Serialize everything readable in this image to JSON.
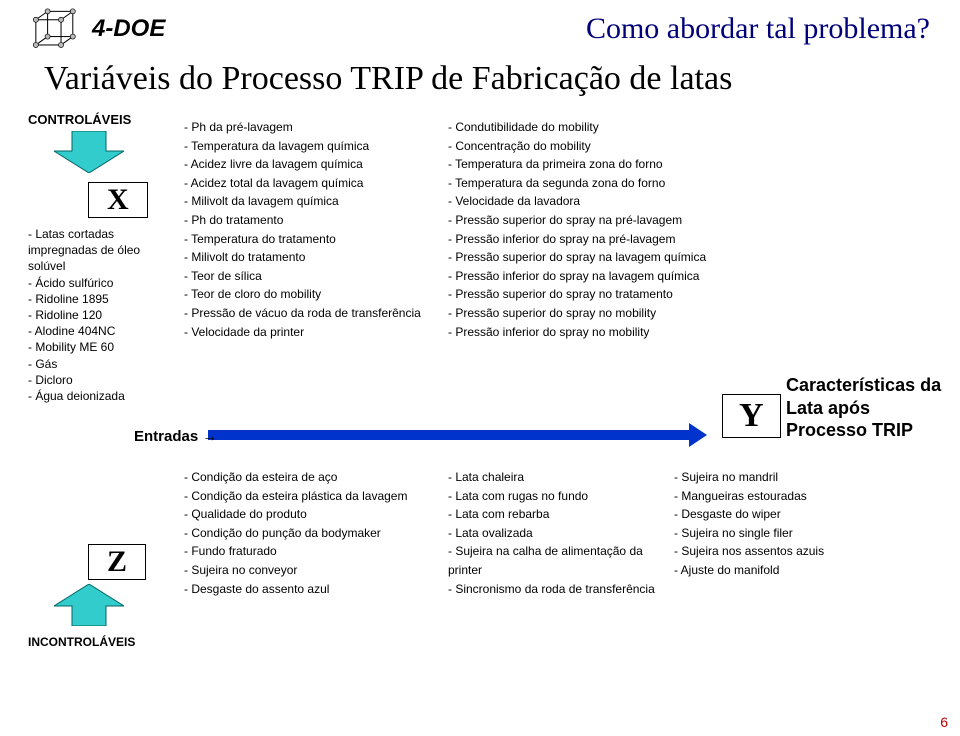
{
  "header": {
    "section": "4-DOE",
    "question": "Como abordar tal problema?",
    "title": "Variáveis do Processo TRIP de Fabricação de latas"
  },
  "left": {
    "controlaveis": "CONTROLÁVEIS",
    "x": "X",
    "items": [
      "- Latas cortadas impregnadas de óleo solúvel",
      "- Ácido sulfúrico",
      "- Ridoline 1895",
      "- Ridoline 120",
      "- Alodine 404NC",
      "- Mobility ME 60",
      "- Gás",
      "- Dicloro",
      "- Água deionizada"
    ],
    "z": "Z",
    "incontrolaveis": "INCONTROLÁVEIS"
  },
  "entradas": "Entradas →",
  "top_left_list": [
    "- Ph da pré-lavagem",
    "- Temperatura da lavagem química",
    "- Acidez livre da lavagem química",
    "- Acidez total da lavagem química",
    "- Milivolt da lavagem química",
    "- Ph do tratamento",
    "- Temperatura do tratamento",
    "- Milivolt do tratamento",
    "- Teor de sílica",
    "- Teor de cloro do mobility",
    "- Pressão de vácuo da roda de transferência",
    "- Velocidade da printer"
  ],
  "top_right_list": [
    "- Condutibilidade do mobility",
    "- Concentração do mobility",
    "- Temperatura da primeira zona do forno",
    "- Temperatura da segunda zona do forno",
    "- Velocidade da lavadora",
    "- Pressão superior do spray na pré-lavagem",
    "- Pressão inferior do spray na pré-lavagem",
    "- Pressão superior do spray na lavagem química",
    "- Pressão inferior do spray na lavagem química",
    "- Pressão superior do spray no tratamento",
    "- Pressão superior do spray no mobility",
    "- Pressão inferior do spray no mobility"
  ],
  "bottom_left_list": [
    "- Condição da esteira de aço",
    "- Condição da esteira plástica da lavagem",
    "- Qualidade do produto",
    "- Condição do punção da bodymaker",
    "- Fundo fraturado",
    "- Sujeira no conveyor",
    "- Desgaste do assento azul"
  ],
  "bottom_mid_list": [
    "- Lata chaleira",
    "- Lata com rugas no fundo",
    "- Lata com rebarba",
    "- Lata ovalizada",
    "- Sujeira na calha de alimentação da printer",
    "- Sincronismo da roda de transferência"
  ],
  "bottom_right_list": [
    "- Sujeira no mandril",
    "- Mangueiras estouradas",
    "- Desgaste do wiper",
    "- Sujeira no single filer",
    "- Sujeira nos assentos azuis",
    "- Ajuste do manifold"
  ],
  "y": "Y",
  "y_label": "Características da Lata após Processo TRIP",
  "page": "6",
  "colors": {
    "blue_title": "#00007a",
    "arrow_fill": "#33cccc",
    "entradas_bar": "#0033cc",
    "pagenum": "#c00000"
  }
}
